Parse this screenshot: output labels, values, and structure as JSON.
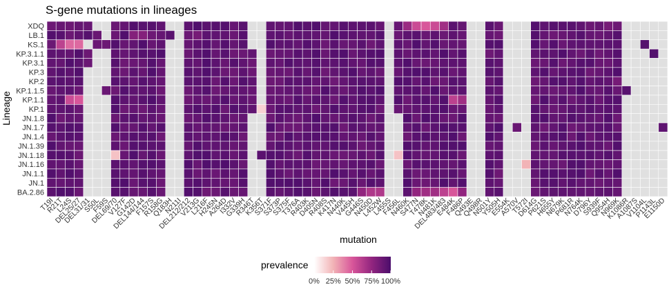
{
  "chart_data": {
    "type": "heatmap",
    "title": "S-gene mutations in lineages",
    "xlabel": "mutation",
    "ylabel": "Lineage",
    "legend": {
      "title": "prevalence",
      "ticks": [
        "0%",
        "25%",
        "50%",
        "75%",
        "100%"
      ],
      "range": [
        0,
        1
      ]
    },
    "colors": {
      "absent": "#e0e0e0",
      "low": "#ffffff",
      "mid": "#c2388f",
      "high": "#4b0d6b",
      "text": "#333333",
      "title": "#000000"
    },
    "lineages": [
      "XDQ",
      "LB.1",
      "KS.1",
      "KP.3.1.1",
      "KP.3.1",
      "KP.3",
      "KP.2",
      "KP.1.1.5",
      "KP.1.1",
      "KP.1",
      "JN.1.8",
      "JN.1.7",
      "JN.1.4",
      "JN.1.39",
      "JN.1.18",
      "JN.1.16",
      "JN.1.1",
      "JN.1",
      "BA.2.86"
    ],
    "mutations": [
      "T19I",
      "R21T",
      "L24S",
      "DEL25/27",
      "DEL31/31",
      "S50L",
      "F59S",
      "DEL69/70",
      "V127F",
      "G142D",
      "DEL144/144",
      "F157S",
      "R158G",
      "Q183H",
      "N211I",
      "DEL212/212",
      "V213G",
      "L216F",
      "H245N",
      "A264D",
      "I332V",
      "G339H",
      "R346T",
      "K356T",
      "S371F",
      "S373P",
      "S375F",
      "T376A",
      "R403K",
      "D405N",
      "R408S",
      "K417N",
      "N440K",
      "V445H",
      "G446S",
      "N450D",
      "L452W",
      "L455S",
      "F456L",
      "N460K",
      "S477N",
      "T478K",
      "N481K",
      "DEL483/483",
      "E484K",
      "F486P",
      "Q493E",
      "Q498R",
      "N501Y",
      "Y505H",
      "E554K",
      "A570V",
      "T572I",
      "D614G",
      "P621S",
      "H655Y",
      "N679K",
      "P681R",
      "N764K",
      "D796Y",
      "S939F",
      "Q954H",
      "N969K",
      "K1086R",
      "A1087S",
      "V1104L",
      "P1143L",
      "E1150D"
    ],
    "absent_cells": [
      [
        2,
        "DEL31/31"
      ],
      [
        5,
        "DEL31/31"
      ],
      [
        6,
        "DEL31/31"
      ],
      [
        7,
        "DEL31/31"
      ],
      [
        8,
        "DEL31/31"
      ],
      [
        9,
        "DEL31/31"
      ],
      [
        10,
        "DEL31/31"
      ],
      [
        11,
        "DEL31/31"
      ],
      [
        12,
        "DEL31/31"
      ],
      [
        13,
        "DEL31/31"
      ],
      [
        14,
        "DEL31/31"
      ],
      [
        15,
        "DEL31/31"
      ],
      [
        16,
        "DEL31/31"
      ],
      [
        17,
        "DEL31/31"
      ],
      [
        18,
        "DEL31/31"
      ],
      [
        0,
        "S50L"
      ],
      [
        3,
        "S50L"
      ],
      [
        4,
        "S50L"
      ],
      [
        5,
        "S50L"
      ],
      [
        6,
        "S50L"
      ],
      [
        7,
        "S50L"
      ],
      [
        8,
        "S50L"
      ],
      [
        9,
        "S50L"
      ],
      [
        10,
        "S50L"
      ],
      [
        11,
        "S50L"
      ],
      [
        12,
        "S50L"
      ],
      [
        13,
        "S50L"
      ],
      [
        14,
        "S50L"
      ],
      [
        15,
        "S50L"
      ],
      [
        16,
        "S50L"
      ],
      [
        17,
        "S50L"
      ],
      [
        18,
        "S50L"
      ],
      [
        0,
        "F59S"
      ],
      [
        1,
        "F59S"
      ],
      [
        3,
        "F59S"
      ],
      [
        4,
        "F59S"
      ],
      [
        5,
        "F59S"
      ],
      [
        6,
        "F59S"
      ],
      [
        8,
        "F59S"
      ],
      [
        9,
        "F59S"
      ],
      [
        10,
        "F59S"
      ],
      [
        11,
        "F59S"
      ],
      [
        12,
        "F59S"
      ],
      [
        13,
        "F59S"
      ],
      [
        14,
        "F59S"
      ],
      [
        15,
        "F59S"
      ],
      [
        16,
        "F59S"
      ],
      [
        17,
        "F59S"
      ],
      [
        18,
        "F59S"
      ],
      [
        0,
        "Q183H"
      ],
      [
        2,
        "Q183H"
      ],
      [
        3,
        "Q183H"
      ],
      [
        4,
        "Q183H"
      ],
      [
        5,
        "Q183H"
      ],
      [
        6,
        "Q183H"
      ],
      [
        7,
        "Q183H"
      ],
      [
        8,
        "Q183H"
      ],
      [
        9,
        "Q183H"
      ],
      [
        10,
        "Q183H"
      ],
      [
        11,
        "Q183H"
      ],
      [
        12,
        "Q183H"
      ],
      [
        13,
        "Q183H"
      ],
      [
        14,
        "Q183H"
      ],
      [
        15,
        "Q183H"
      ],
      [
        16,
        "Q183H"
      ],
      [
        17,
        "Q183H"
      ],
      [
        18,
        "Q183H"
      ],
      [
        0,
        "N211I"
      ],
      [
        1,
        "N211I"
      ],
      [
        2,
        "N211I"
      ],
      [
        3,
        "N211I"
      ],
      [
        4,
        "N211I"
      ],
      [
        5,
        "N211I"
      ],
      [
        6,
        "N211I"
      ],
      [
        7,
        "N211I"
      ],
      [
        8,
        "N211I"
      ],
      [
        9,
        "N211I"
      ],
      [
        10,
        "N211I"
      ],
      [
        11,
        "N211I"
      ],
      [
        12,
        "N211I"
      ],
      [
        13,
        "N211I"
      ],
      [
        14,
        "N211I"
      ],
      [
        15,
        "N211I"
      ],
      [
        16,
        "N211I"
      ],
      [
        17,
        "N211I"
      ],
      [
        18,
        "N211I"
      ],
      [
        0,
        "R346T"
      ],
      [
        1,
        "R346T"
      ],
      [
        2,
        "R346T"
      ],
      [
        10,
        "R346T"
      ],
      [
        11,
        "R346T"
      ],
      [
        12,
        "R346T"
      ],
      [
        13,
        "R346T"
      ],
      [
        14,
        "R346T"
      ],
      [
        15,
        "R346T"
      ],
      [
        16,
        "R346T"
      ],
      [
        17,
        "R346T"
      ],
      [
        18,
        "R346T"
      ],
      [
        0,
        "K356T"
      ],
      [
        1,
        "K356T"
      ],
      [
        2,
        "K356T"
      ],
      [
        3,
        "K356T"
      ],
      [
        4,
        "K356T"
      ],
      [
        5,
        "K356T"
      ],
      [
        6,
        "K356T"
      ],
      [
        7,
        "K356T"
      ],
      [
        8,
        "K356T"
      ],
      [
        10,
        "K356T"
      ],
      [
        11,
        "K356T"
      ],
      [
        12,
        "K356T"
      ],
      [
        13,
        "K356T"
      ],
      [
        15,
        "K356T"
      ],
      [
        16,
        "K356T"
      ],
      [
        17,
        "K356T"
      ],
      [
        18,
        "K356T"
      ],
      [
        0,
        "L455S"
      ],
      [
        1,
        "L455S"
      ],
      [
        2,
        "L455S"
      ],
      [
        3,
        "L455S"
      ],
      [
        4,
        "L455S"
      ],
      [
        5,
        "L455S"
      ],
      [
        6,
        "L455S"
      ],
      [
        7,
        "L455S"
      ],
      [
        8,
        "L455S"
      ],
      [
        9,
        "L455S"
      ],
      [
        10,
        "L455S"
      ],
      [
        11,
        "L455S"
      ],
      [
        12,
        "L455S"
      ],
      [
        13,
        "L455S"
      ],
      [
        14,
        "L455S"
      ],
      [
        15,
        "L455S"
      ],
      [
        16,
        "L455S"
      ],
      [
        17,
        "L455S"
      ],
      [
        18,
        "L455S"
      ],
      [
        10,
        "F456L"
      ],
      [
        11,
        "F456L"
      ],
      [
        12,
        "F456L"
      ],
      [
        13,
        "F456L"
      ],
      [
        15,
        "F456L"
      ],
      [
        16,
        "F456L"
      ],
      [
        17,
        "F456L"
      ],
      [
        18,
        "F456L"
      ],
      [
        0,
        "Q493E"
      ],
      [
        1,
        "Q493E"
      ],
      [
        2,
        "Q493E"
      ],
      [
        3,
        "Q493E"
      ],
      [
        4,
        "Q493E"
      ],
      [
        5,
        "Q493E"
      ],
      [
        6,
        "Q493E"
      ],
      [
        7,
        "Q493E"
      ],
      [
        8,
        "Q493E"
      ],
      [
        9,
        "Q493E"
      ],
      [
        10,
        "Q493E"
      ],
      [
        11,
        "Q493E"
      ],
      [
        12,
        "Q493E"
      ],
      [
        13,
        "Q493E"
      ],
      [
        14,
        "Q493E"
      ],
      [
        15,
        "Q493E"
      ],
      [
        16,
        "Q493E"
      ],
      [
        17,
        "Q493E"
      ],
      [
        18,
        "Q493E"
      ],
      [
        0,
        "Q498R"
      ],
      [
        1,
        "Q498R"
      ],
      [
        2,
        "Q498R"
      ],
      [
        3,
        "Q498R"
      ],
      [
        4,
        "Q498R"
      ],
      [
        5,
        "Q498R"
      ],
      [
        6,
        "Q498R"
      ],
      [
        7,
        "Q498R"
      ],
      [
        8,
        "Q498R"
      ],
      [
        9,
        "Q498R"
      ],
      [
        10,
        "Q498R"
      ],
      [
        11,
        "Q498R"
      ],
      [
        12,
        "Q498R"
      ],
      [
        13,
        "Q498R"
      ],
      [
        14,
        "Q498R"
      ],
      [
        15,
        "Q498R"
      ],
      [
        16,
        "Q498R"
      ],
      [
        17,
        "Q498R"
      ],
      [
        18,
        "Q498R"
      ],
      [
        0,
        "E554K"
      ],
      [
        1,
        "E554K"
      ],
      [
        2,
        "E554K"
      ],
      [
        3,
        "E554K"
      ],
      [
        4,
        "E554K"
      ],
      [
        5,
        "E554K"
      ],
      [
        6,
        "E554K"
      ],
      [
        7,
        "E554K"
      ],
      [
        8,
        "E554K"
      ],
      [
        9,
        "E554K"
      ],
      [
        10,
        "E554K"
      ],
      [
        11,
        "E554K"
      ],
      [
        12,
        "E554K"
      ],
      [
        13,
        "E554K"
      ],
      [
        14,
        "E554K"
      ],
      [
        15,
        "E554K"
      ],
      [
        16,
        "E554K"
      ],
      [
        17,
        "E554K"
      ],
      [
        18,
        "E554K"
      ],
      [
        0,
        "A570V"
      ],
      [
        1,
        "A570V"
      ],
      [
        2,
        "A570V"
      ],
      [
        3,
        "A570V"
      ],
      [
        4,
        "A570V"
      ],
      [
        5,
        "A570V"
      ],
      [
        6,
        "A570V"
      ],
      [
        7,
        "A570V"
      ],
      [
        8,
        "A570V"
      ],
      [
        9,
        "A570V"
      ],
      [
        10,
        "A570V"
      ],
      [
        12,
        "A570V"
      ],
      [
        13,
        "A570V"
      ],
      [
        14,
        "A570V"
      ],
      [
        15,
        "A570V"
      ],
      [
        16,
        "A570V"
      ],
      [
        17,
        "A570V"
      ],
      [
        18,
        "A570V"
      ],
      [
        0,
        "T572I"
      ],
      [
        1,
        "T572I"
      ],
      [
        2,
        "T572I"
      ],
      [
        3,
        "T572I"
      ],
      [
        4,
        "T572I"
      ],
      [
        5,
        "T572I"
      ],
      [
        6,
        "T572I"
      ],
      [
        7,
        "T572I"
      ],
      [
        8,
        "T572I"
      ],
      [
        9,
        "T572I"
      ],
      [
        10,
        "T572I"
      ],
      [
        11,
        "T572I"
      ],
      [
        12,
        "T572I"
      ],
      [
        13,
        "T572I"
      ],
      [
        14,
        "T572I"
      ],
      [
        16,
        "T572I"
      ],
      [
        17,
        "T572I"
      ],
      [
        18,
        "T572I"
      ],
      [
        0,
        "K1086R"
      ],
      [
        1,
        "K1086R"
      ],
      [
        2,
        "K1086R"
      ],
      [
        3,
        "K1086R"
      ],
      [
        4,
        "K1086R"
      ],
      [
        5,
        "K1086R"
      ],
      [
        6,
        "K1086R"
      ],
      [
        8,
        "K1086R"
      ],
      [
        9,
        "K1086R"
      ],
      [
        10,
        "K1086R"
      ],
      [
        11,
        "K1086R"
      ],
      [
        12,
        "K1086R"
      ],
      [
        13,
        "K1086R"
      ],
      [
        14,
        "K1086R"
      ],
      [
        15,
        "K1086R"
      ],
      [
        16,
        "K1086R"
      ],
      [
        17,
        "K1086R"
      ],
      [
        18,
        "K1086R"
      ],
      [
        0,
        "A1087S"
      ],
      [
        1,
        "A1087S"
      ],
      [
        2,
        "A1087S"
      ],
      [
        3,
        "A1087S"
      ],
      [
        4,
        "A1087S"
      ],
      [
        5,
        "A1087S"
      ],
      [
        6,
        "A1087S"
      ],
      [
        7,
        "A1087S"
      ],
      [
        8,
        "A1087S"
      ],
      [
        9,
        "A1087S"
      ],
      [
        10,
        "A1087S"
      ],
      [
        11,
        "A1087S"
      ],
      [
        12,
        "A1087S"
      ],
      [
        13,
        "A1087S"
      ],
      [
        14,
        "A1087S"
      ],
      [
        15,
        "A1087S"
      ],
      [
        16,
        "A1087S"
      ],
      [
        17,
        "A1087S"
      ],
      [
        18,
        "A1087S"
      ],
      [
        0,
        "V1104L"
      ],
      [
        1,
        "V1104L"
      ],
      [
        3,
        "V1104L"
      ],
      [
        4,
        "V1104L"
      ],
      [
        5,
        "V1104L"
      ],
      [
        6,
        "V1104L"
      ],
      [
        7,
        "V1104L"
      ],
      [
        8,
        "V1104L"
      ],
      [
        9,
        "V1104L"
      ],
      [
        10,
        "V1104L"
      ],
      [
        11,
        "V1104L"
      ],
      [
        12,
        "V1104L"
      ],
      [
        13,
        "V1104L"
      ],
      [
        14,
        "V1104L"
      ],
      [
        15,
        "V1104L"
      ],
      [
        16,
        "V1104L"
      ],
      [
        17,
        "V1104L"
      ],
      [
        18,
        "V1104L"
      ],
      [
        0,
        "P1143L"
      ],
      [
        1,
        "P1143L"
      ],
      [
        2,
        "P1143L"
      ],
      [
        4,
        "P1143L"
      ],
      [
        5,
        "P1143L"
      ],
      [
        6,
        "P1143L"
      ],
      [
        7,
        "P1143L"
      ],
      [
        8,
        "P1143L"
      ],
      [
        9,
        "P1143L"
      ],
      [
        10,
        "P1143L"
      ],
      [
        11,
        "P1143L"
      ],
      [
        12,
        "P1143L"
      ],
      [
        13,
        "P1143L"
      ],
      [
        14,
        "P1143L"
      ],
      [
        15,
        "P1143L"
      ],
      [
        16,
        "P1143L"
      ],
      [
        17,
        "P1143L"
      ],
      [
        18,
        "P1143L"
      ],
      [
        0,
        "E1150D"
      ],
      [
        1,
        "E1150D"
      ],
      [
        2,
        "E1150D"
      ],
      [
        3,
        "E1150D"
      ],
      [
        4,
        "E1150D"
      ],
      [
        5,
        "E1150D"
      ],
      [
        6,
        "E1150D"
      ],
      [
        7,
        "E1150D"
      ],
      [
        8,
        "E1150D"
      ],
      [
        9,
        "E1150D"
      ],
      [
        10,
        "E1150D"
      ],
      [
        12,
        "E1150D"
      ],
      [
        13,
        "E1150D"
      ],
      [
        14,
        "E1150D"
      ],
      [
        15,
        "E1150D"
      ],
      [
        16,
        "E1150D"
      ],
      [
        17,
        "E1150D"
      ],
      [
        18,
        "E1150D"
      ]
    ],
    "value_overrides": [
      [
        0,
        "N460K",
        0.72
      ],
      [
        0,
        "S477N",
        0.55
      ],
      [
        0,
        "T478K",
        0.5
      ],
      [
        0,
        "N481K",
        0.55
      ],
      [
        0,
        "DEL483/483",
        0.7
      ],
      [
        2,
        "L24S",
        0.45
      ],
      [
        2,
        "DEL25/27",
        0.45
      ],
      [
        2,
        "R21T",
        0.6
      ],
      [
        8,
        "L24S",
        0.55
      ],
      [
        8,
        "DEL25/27",
        0.5
      ],
      [
        8,
        "E484K",
        0.6
      ],
      [
        8,
        "F486P",
        0.7
      ],
      [
        9,
        "K356T",
        0.15
      ],
      [
        14,
        "DEL69/70",
        0.2
      ],
      [
        14,
        "F456L",
        0.2
      ],
      [
        15,
        "T572I",
        0.25
      ],
      [
        18,
        "N450D",
        0.65
      ],
      [
        18,
        "L452W",
        0.65
      ],
      [
        18,
        "T478K",
        0.7
      ],
      [
        18,
        "N481K",
        0.7
      ],
      [
        18,
        "DEL483/483",
        0.6
      ],
      [
        18,
        "E484K",
        0.5
      ],
      [
        18,
        "F486P",
        0.75
      ],
      [
        18,
        "G446S",
        0.75
      ],
      [
        18,
        "S477N",
        0.75
      ],
      [
        1,
        "G142D",
        0.8
      ],
      [
        1,
        "DEL144/144",
        0.8
      ],
      [
        1,
        "V213G",
        0.85
      ],
      [
        0,
        "Q954H",
        0.85
      ],
      [
        6,
        "N969K",
        0.85
      ]
    ],
    "default_value": 0.93
  }
}
